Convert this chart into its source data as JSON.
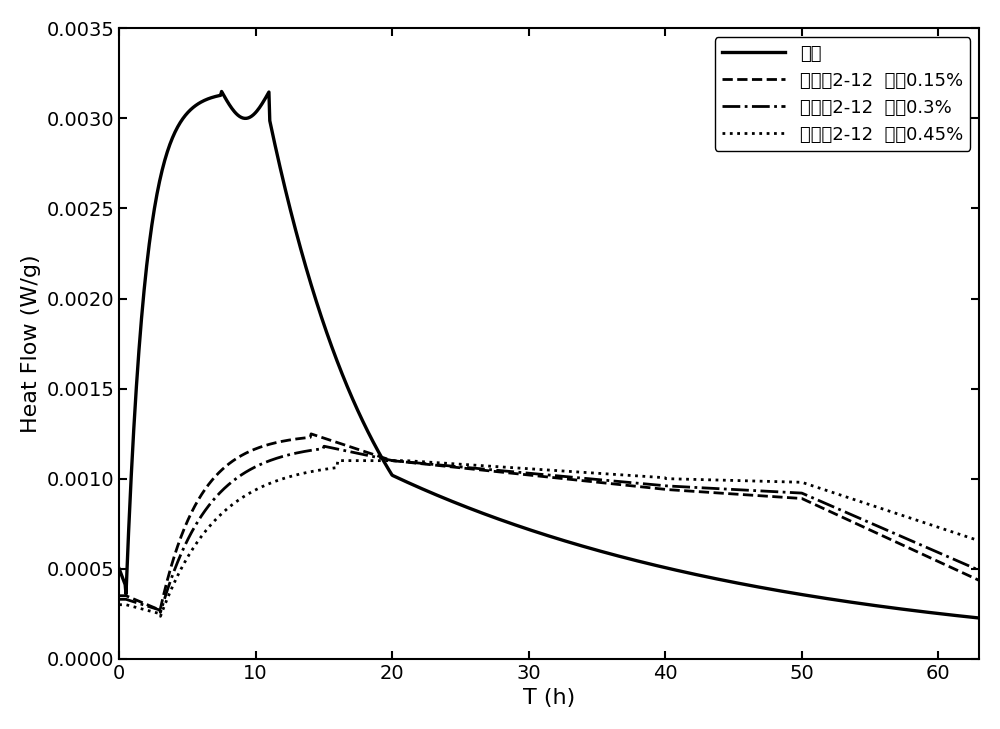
{
  "xlabel": "T (h)",
  "ylabel": "Heat Flow (W/g)",
  "xlim": [
    0,
    63
  ],
  "ylim": [
    0.0,
    0.0035
  ],
  "xticks": [
    0,
    10,
    20,
    30,
    40,
    50,
    60
  ],
  "yticks": [
    0.0,
    0.0005,
    0.001,
    0.0015,
    0.002,
    0.0025,
    0.003,
    0.0035
  ],
  "legend_labels": [
    "基准",
    "实施例2-12  掺量0.15%",
    "实施例2-12  掺量0.3%",
    "实施例2-12  掺量0.45%"
  ],
  "legend_styles": [
    "solid",
    "dashed",
    "dashdot",
    "dotted"
  ],
  "line_color": "#000000",
  "background_color": "#ffffff",
  "font_size": 14,
  "legend_font_size": 13
}
